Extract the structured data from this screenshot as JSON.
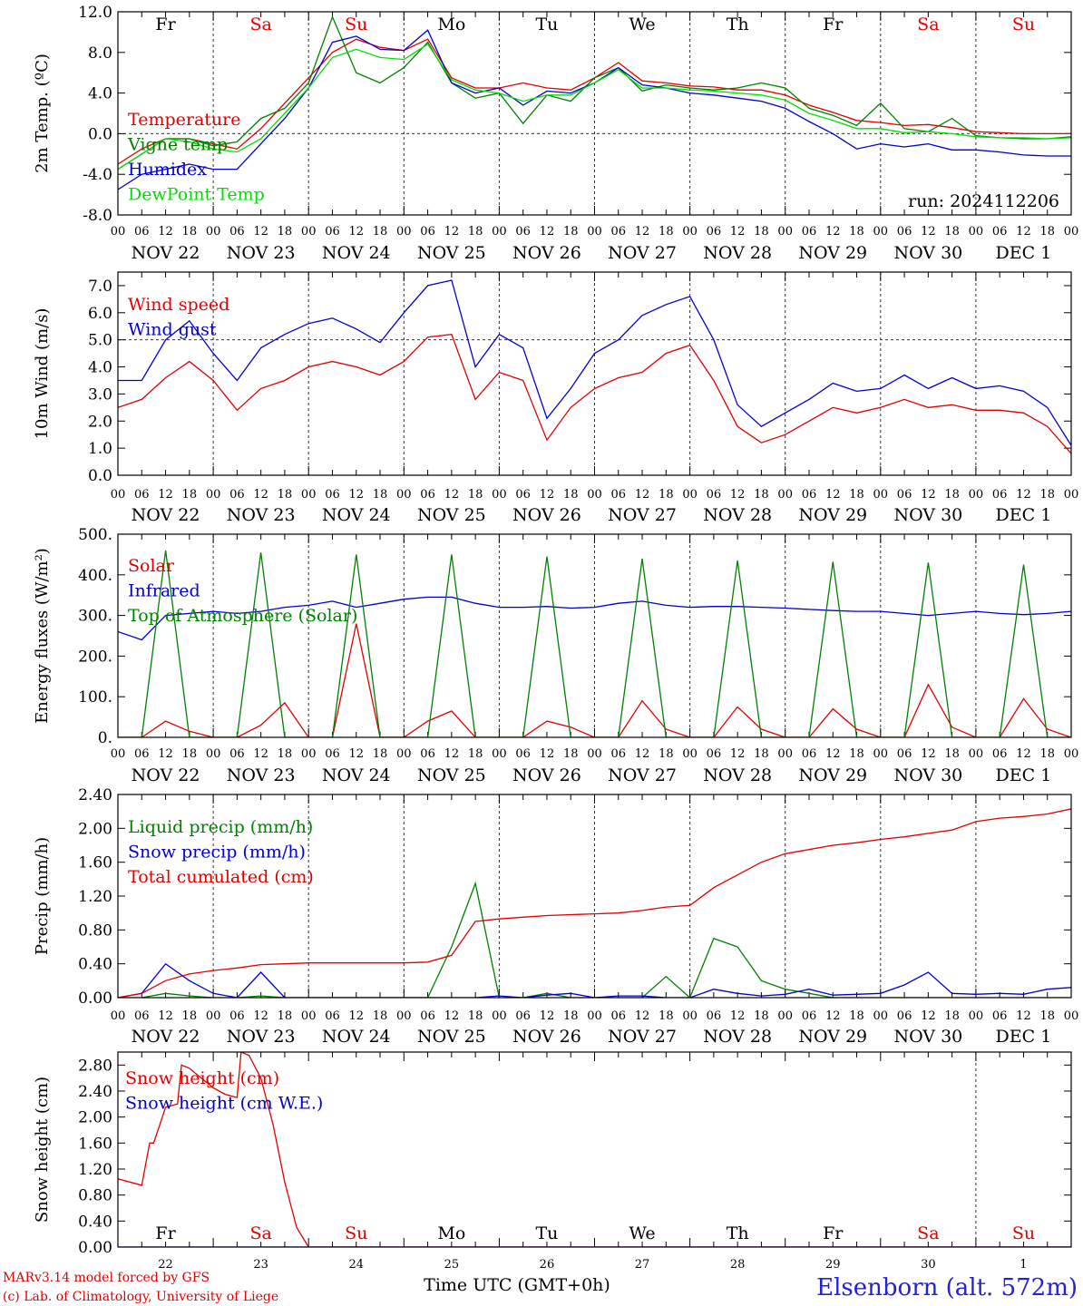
{
  "chart_data": [
    {
      "type": "line",
      "ylabel": "2m Temp. (ºC)",
      "ylim": [
        -8,
        12
      ],
      "yticks": [
        "-8.0",
        "-4.0",
        "0.0",
        "4.0",
        "8.0",
        "12.0"
      ],
      "ytick_values": [
        -8,
        -4,
        0,
        4,
        8,
        12
      ],
      "ref_line": 0,
      "days_top": [
        "Fr",
        "Sa",
        "Su",
        "Mo",
        "Tu",
        "We",
        "Th",
        "Fr",
        "Sa",
        "Su"
      ],
      "day_colors": [
        "#000000",
        "#e00000",
        "#e00000",
        "#000000",
        "#000000",
        "#000000",
        "#000000",
        "#000000",
        "#e00000",
        "#e00000"
      ],
      "annotation": "run: 2024112206",
      "x_hours": [
        0,
        6,
        12,
        18,
        24,
        30,
        36,
        42,
        48,
        54,
        60,
        66,
        72,
        78,
        84,
        90,
        96,
        102,
        108,
        114,
        120,
        126,
        132,
        138,
        144,
        150,
        156,
        162,
        168,
        174,
        180,
        186,
        192,
        198,
        204,
        210,
        216,
        222,
        228,
        234,
        240
      ],
      "series": [
        {
          "name": "Temperature",
          "color": "#e00000",
          "values": [
            -3,
            -1.5,
            -0.5,
            -0.5,
            -1,
            -1.5,
            0.5,
            3,
            5.5,
            8,
            9.3,
            8.5,
            8.2,
            9.3,
            5.5,
            4.5,
            4.5,
            5,
            4.5,
            4.3,
            5.5,
            7,
            5.2,
            5,
            4.7,
            4.6,
            4.3,
            4.3,
            3.8,
            2.8,
            2.1,
            1.3,
            1.1,
            0.8,
            0.9,
            0.6,
            0.2,
            0.1,
            0,
            0,
            0
          ]
        },
        {
          "name": "Vigne temp",
          "color": "#008000",
          "values": [
            -3.5,
            -2,
            -0.5,
            -0.5,
            -1.2,
            -0.8,
            1.5,
            2.5,
            5,
            11.5,
            6,
            5,
            6.5,
            9,
            5,
            3.5,
            4,
            1,
            3.8,
            3.2,
            5.5,
            6.5,
            4.2,
            4.8,
            4.5,
            4.3,
            4.5,
            5,
            4.5,
            2.5,
            1.8,
            0.8,
            3,
            0.5,
            0.2,
            1.5,
            -0.2,
            -0.4,
            -0.5,
            -0.5,
            -0.3
          ]
        },
        {
          "name": "Humidex",
          "color": "#0000d0",
          "values": [
            -5.5,
            -4,
            -3.5,
            -3,
            -3.5,
            -3.5,
            -1,
            1.5,
            4.5,
            9,
            9.6,
            8.3,
            8.2,
            10.2,
            5,
            4,
            4.5,
            2.8,
            4.2,
            4,
            5,
            6.5,
            4.8,
            4.5,
            4,
            3.8,
            3.5,
            3.2,
            2.5,
            1.2,
            0,
            -1.5,
            -1,
            -1.3,
            -1,
            -1.6,
            -1.6,
            -1.8,
            -2.1,
            -2.2,
            -2.2
          ]
        },
        {
          "name": "DewPoint Temp",
          "color": "#00e000",
          "values": [
            -3.5,
            -2,
            -0.5,
            -0.8,
            -1.5,
            -1.8,
            -0.5,
            2,
            4.5,
            7.5,
            8.3,
            7.5,
            7.3,
            8.8,
            5.3,
            4.3,
            4,
            3.2,
            3.8,
            3.8,
            5,
            6.3,
            4.5,
            4.5,
            4.3,
            4.2,
            4,
            3.8,
            3.3,
            2,
            1.3,
            0.5,
            0.5,
            0.1,
            0.2,
            0,
            -0.3,
            -0.4,
            -0.4,
            -0.5,
            -0.4
          ]
        }
      ]
    },
    {
      "type": "line",
      "ylabel": "10m Wind (m/s)",
      "ylim": [
        0,
        7.5
      ],
      "yticks": [
        "0.0",
        "1.0",
        "2.0",
        "3.0",
        "4.0",
        "5.0",
        "6.0",
        "7.0"
      ],
      "ytick_values": [
        0,
        1,
        2,
        3,
        4,
        5,
        6,
        7
      ],
      "ref_line": 5,
      "x_hours": [
        0,
        6,
        12,
        18,
        24,
        30,
        36,
        42,
        48,
        54,
        60,
        66,
        72,
        78,
        84,
        90,
        96,
        102,
        108,
        114,
        120,
        126,
        132,
        138,
        144,
        150,
        156,
        162,
        168,
        174,
        180,
        186,
        192,
        198,
        204,
        210,
        216,
        222,
        228,
        234,
        240
      ],
      "series": [
        {
          "name": "Wind speed",
          "color": "#e00000",
          "values": [
            2.5,
            2.8,
            3.6,
            4.2,
            3.5,
            2.4,
            3.2,
            3.5,
            4,
            4.2,
            4,
            3.7,
            4.2,
            5.1,
            5.2,
            2.8,
            3.8,
            3.5,
            1.3,
            2.5,
            3.2,
            3.6,
            3.8,
            4.5,
            4.8,
            3.5,
            1.8,
            1.2,
            1.5,
            2,
            2.5,
            2.3,
            2.5,
            2.8,
            2.5,
            2.6,
            2.4,
            2.4,
            2.3,
            1.8,
            0.8
          ]
        },
        {
          "name": "Wind gust",
          "color": "#0000d0",
          "values": [
            3.5,
            3.5,
            5,
            5.7,
            4.5,
            3.5,
            4.7,
            5.2,
            5.6,
            5.8,
            5.4,
            4.9,
            6,
            7,
            7.2,
            4,
            5.2,
            4.7,
            2.1,
            3.2,
            4.5,
            5,
            5.9,
            6.3,
            6.6,
            5,
            2.6,
            1.8,
            2.3,
            2.8,
            3.4,
            3.1,
            3.2,
            3.7,
            3.2,
            3.6,
            3.2,
            3.3,
            3.1,
            2.5,
            1.1
          ]
        }
      ]
    },
    {
      "type": "line",
      "ylabel": "Energy fluxes (W/m²)",
      "ylim": [
        0,
        500
      ],
      "yticks": [
        "0.",
        "100.",
        "200.",
        "300.",
        "400.",
        "500."
      ],
      "ytick_values": [
        0,
        100,
        200,
        300,
        400,
        500
      ],
      "x_hours": [
        0,
        6,
        12,
        18,
        24,
        30,
        36,
        42,
        48,
        54,
        60,
        66,
        72,
        78,
        84,
        90,
        96,
        102,
        108,
        114,
        120,
        126,
        132,
        138,
        144,
        150,
        156,
        162,
        168,
        174,
        180,
        186,
        192,
        198,
        204,
        210,
        216,
        222,
        228,
        234,
        240
      ],
      "series": [
        {
          "name": "Solar",
          "color": "#e00000",
          "values": [
            0,
            0,
            40,
            15,
            0,
            0,
            30,
            85,
            0,
            0,
            280,
            0,
            0,
            40,
            65,
            0,
            0,
            0,
            40,
            25,
            0,
            0,
            90,
            20,
            0,
            0,
            75,
            20,
            0,
            0,
            70,
            20,
            0,
            0,
            130,
            25,
            0,
            0,
            95,
            20,
            0
          ]
        },
        {
          "name": "Infrared",
          "color": "#0000d0",
          "values": [
            260,
            240,
            300,
            305,
            310,
            305,
            310,
            320,
            325,
            335,
            320,
            330,
            340,
            345,
            345,
            330,
            320,
            320,
            322,
            318,
            320,
            330,
            335,
            325,
            320,
            322,
            322,
            320,
            318,
            315,
            312,
            310,
            310,
            305,
            300,
            305,
            310,
            305,
            302,
            305,
            310
          ]
        },
        {
          "name": "Top of Atmosphere (Solar)",
          "color": "#008000",
          "values": [
            0,
            0,
            460,
            0,
            0,
            0,
            455,
            0,
            0,
            0,
            450,
            0,
            0,
            0,
            450,
            0,
            0,
            0,
            445,
            0,
            0,
            0,
            440,
            0,
            0,
            0,
            435,
            0,
            0,
            0,
            432,
            0,
            0,
            0,
            430,
            0,
            0,
            0,
            425,
            0,
            0
          ]
        }
      ]
    },
    {
      "type": "line",
      "ylabel": "Precip (mm/h)",
      "ylim": [
        0,
        2.4
      ],
      "yticks": [
        "0.00",
        "0.40",
        "0.80",
        "1.20",
        "1.60",
        "2.00",
        "2.40"
      ],
      "ytick_values": [
        0,
        0.4,
        0.8,
        1.2,
        1.6,
        2.0,
        2.4
      ],
      "x_hours": [
        0,
        6,
        12,
        18,
        24,
        30,
        36,
        42,
        48,
        54,
        60,
        66,
        72,
        78,
        84,
        90,
        96,
        102,
        108,
        114,
        120,
        126,
        132,
        138,
        144,
        150,
        156,
        162,
        168,
        174,
        180,
        186,
        192,
        198,
        204,
        210,
        216,
        222,
        228,
        234,
        240
      ],
      "series": [
        {
          "name": "Liquid precip (mm/h)",
          "color": "#008000",
          "values": [
            0,
            0,
            0.05,
            0.02,
            0,
            0,
            0.02,
            0,
            0,
            0,
            0,
            0,
            0,
            0,
            0.6,
            1.35,
            0,
            0,
            0.05,
            0,
            0,
            0,
            0,
            0.25,
            0,
            0.7,
            0.6,
            0.2,
            0.1,
            0.05,
            0,
            0,
            0,
            0,
            0,
            0,
            0,
            0,
            0,
            0,
            0
          ]
        },
        {
          "name": "Snow precip (mm/h)",
          "color": "#0000d0",
          "values": [
            0,
            0.05,
            0.4,
            0.2,
            0.05,
            0,
            0.3,
            0,
            0,
            0,
            0,
            0,
            0,
            0,
            0,
            0,
            0.02,
            0,
            0.03,
            0.05,
            0,
            0.02,
            0.02,
            0,
            0,
            0.1,
            0.05,
            0.02,
            0.04,
            0.1,
            0.03,
            0.04,
            0.05,
            0.15,
            0.3,
            0.05,
            0.04,
            0.05,
            0.04,
            0.1,
            0.12
          ]
        },
        {
          "name": "Total cumulated (cm)",
          "color": "#e00000",
          "values": [
            0,
            0.05,
            0.2,
            0.28,
            0.32,
            0.35,
            0.39,
            0.4,
            0.41,
            0.41,
            0.41,
            0.41,
            0.41,
            0.42,
            0.5,
            0.9,
            0.93,
            0.95,
            0.97,
            0.98,
            0.99,
            1.0,
            1.03,
            1.07,
            1.09,
            1.3,
            1.45,
            1.6,
            1.7,
            1.75,
            1.8,
            1.83,
            1.87,
            1.9,
            1.94,
            1.98,
            2.08,
            2.12,
            2.14,
            2.17,
            2.23
          ]
        }
      ]
    },
    {
      "type": "line",
      "ylabel": "Snow height (cm)",
      "ylim": [
        0,
        3.0
      ],
      "yticks": [
        "0.00",
        "0.40",
        "0.80",
        "1.20",
        "1.60",
        "2.00",
        "2.40",
        "2.80"
      ],
      "ytick_values": [
        0,
        0.4,
        0.8,
        1.2,
        1.6,
        2.0,
        2.4,
        2.8
      ],
      "days_bottom": [
        "Fr",
        "Sa",
        "Su",
        "Mo",
        "Tu",
        "We",
        "Th",
        "Fr",
        "Sa",
        "Su"
      ],
      "day_numbers": [
        "22",
        "23",
        "24",
        "25",
        "26",
        "27",
        "28",
        "29",
        "30",
        "1"
      ],
      "x_hours": [
        0,
        6,
        8,
        9,
        12,
        15,
        16,
        18,
        21,
        24,
        27,
        30,
        31,
        33,
        36,
        39,
        42,
        45,
        48,
        240
      ],
      "series": [
        {
          "name": "Snow height (cm)",
          "color": "#e00000",
          "values": [
            1.05,
            0.95,
            1.6,
            1.6,
            2.15,
            2.2,
            2.8,
            2.75,
            2.6,
            2.45,
            2.35,
            2.3,
            3.0,
            2.95,
            2.6,
            1.9,
            1.0,
            0.3,
            0,
            0
          ]
        },
        {
          "name": "Snow height (cm W.E.)",
          "color": "#0000d0",
          "values": [
            0,
            0,
            0,
            0,
            0,
            0,
            0,
            0,
            0,
            0,
            0,
            0,
            0,
            0,
            0,
            0,
            0,
            0,
            0,
            0
          ]
        }
      ]
    }
  ],
  "xtick_labels": [
    "00",
    "06",
    "12",
    "18"
  ],
  "date_labels": [
    "NOV 22",
    "NOV 23",
    "NOV 24",
    "NOV 25",
    "NOV 26",
    "NOV 27",
    "NOV 28",
    "NOV 29",
    "NOV 30",
    "DEC  1"
  ],
  "footer": {
    "credit_line1": "MARv3.14 model forced by GFS",
    "credit_line2": "(c) Lab. of Climatology, University of Liege",
    "axis_title": "Time UTC (GMT+0h)",
    "station": "Elsenborn (alt. 572m)"
  }
}
